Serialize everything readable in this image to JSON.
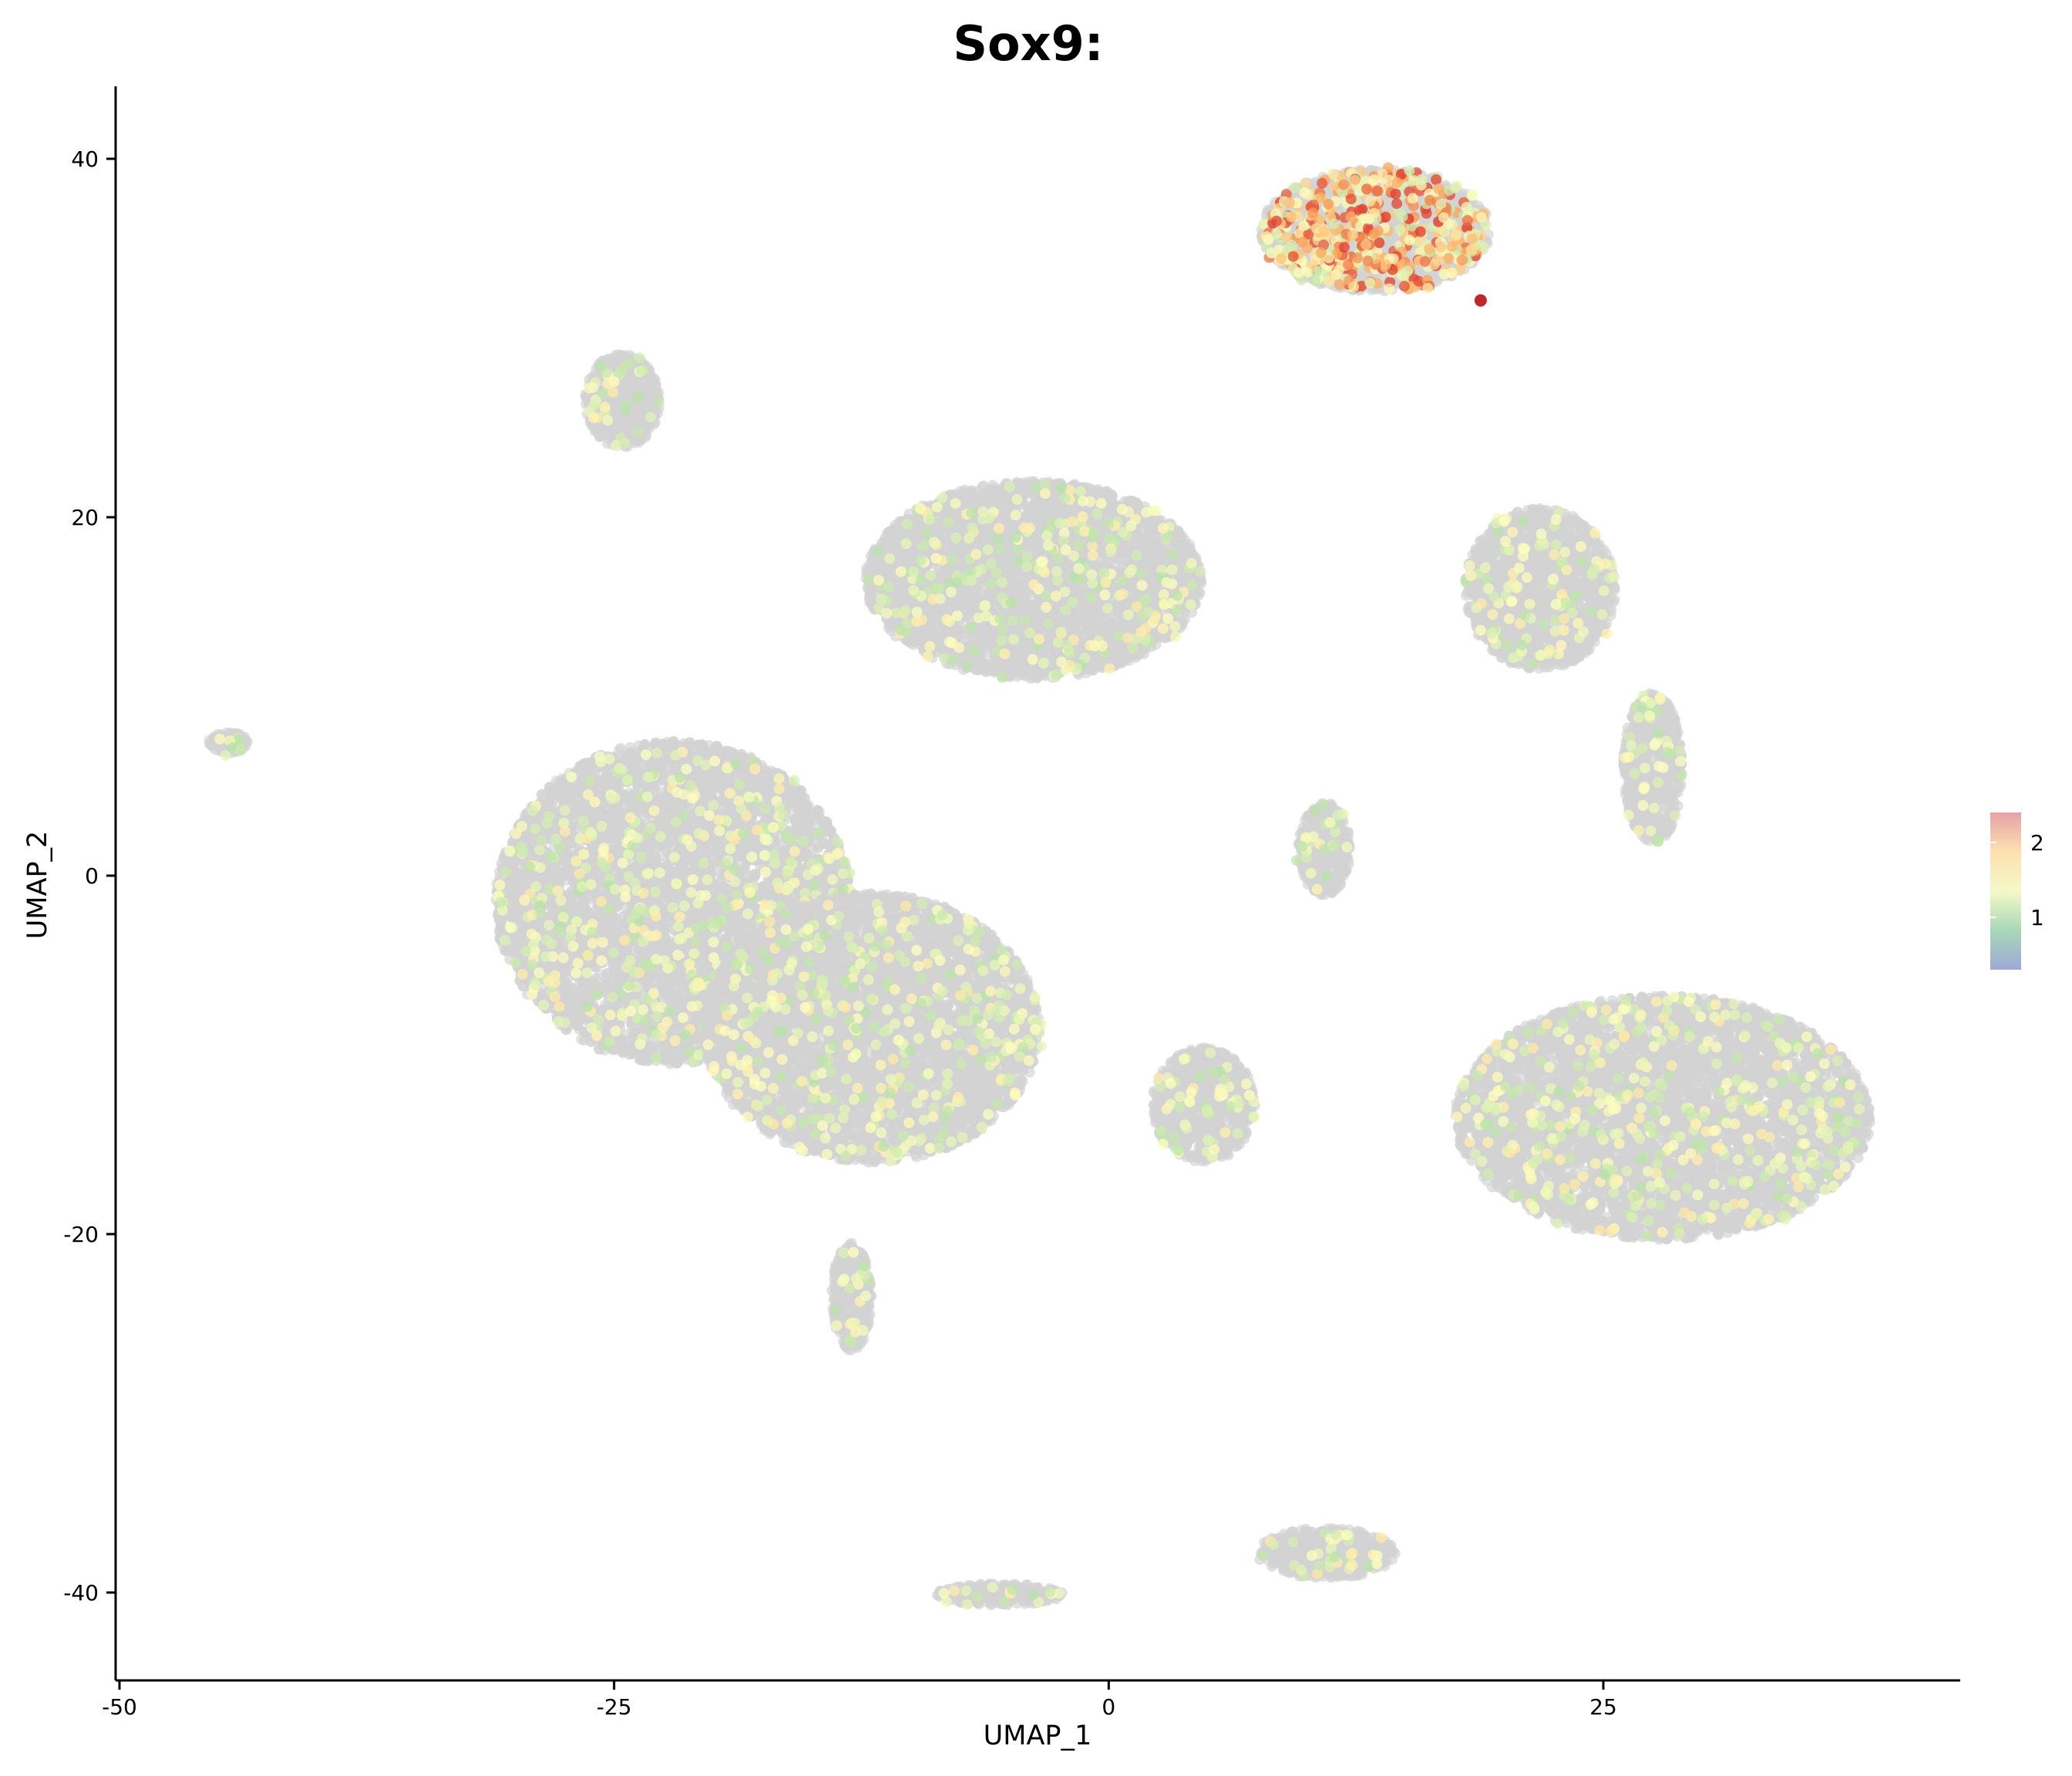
{
  "chart_data": {
    "type": "scatter",
    "title": "Sox9:",
    "xlabel": "UMAP_1",
    "ylabel": "UMAP_2",
    "xlim": [
      -50,
      43
    ],
    "ylim": [
      -45,
      44
    ],
    "x_ticks": [
      -50,
      -25,
      0,
      25
    ],
    "y_ticks": [
      40,
      20,
      0,
      -20,
      -40
    ],
    "grid": false,
    "background_color": "#d3d3d3",
    "color_scale": {
      "name": "Spectral",
      "min": 0.3,
      "max": 2.4,
      "ticks": [
        1,
        2
      ],
      "colors": [
        "#abdda4",
        "#ffffbf",
        "#fdae61",
        "#d7191c"
      ],
      "legend_colors": [
        "#9fa8d6",
        "#a8d8b8",
        "#f4f9c8",
        "#fde0b0",
        "#e6a2a8"
      ],
      "legend_position": "right"
    },
    "clusters": [
      {
        "cx": 13.5,
        "cy": 36.0,
        "rx": 5.8,
        "ry": 3.4,
        "label": "top"
      },
      {
        "cx": -24.6,
        "cy": 26.5,
        "rx": 1.9,
        "ry": 2.6,
        "label": "upper-left-small"
      },
      {
        "cx": -3.8,
        "cy": 16.5,
        "rx": 8.5,
        "ry": 5.5,
        "label": "upper-middle"
      },
      {
        "cx": 21.8,
        "cy": 16.0,
        "rx": 3.8,
        "ry": 4.5,
        "label": "upper-right"
      },
      {
        "cx": -44.5,
        "cy": 7.4,
        "rx": 1.0,
        "ry": 0.6,
        "label": "far-left"
      },
      {
        "cx": -22.0,
        "cy": -1.5,
        "rx": 9.0,
        "ry": 9.0,
        "label": "left-mass"
      },
      {
        "cx": -12.0,
        "cy": -8.5,
        "rx": 8.5,
        "ry": 7.5,
        "label": "center-mass"
      },
      {
        "cx": 10.9,
        "cy": 1.5,
        "rx": 1.3,
        "ry": 2.6,
        "label": "mid-small"
      },
      {
        "cx": 4.8,
        "cy": -12.8,
        "rx": 2.6,
        "ry": 3.2,
        "label": "mid-lower"
      },
      {
        "cx": 28.0,
        "cy": -13.5,
        "rx": 10.5,
        "ry": 6.8,
        "label": "right-mass"
      },
      {
        "cx": 27.5,
        "cy": 6.0,
        "rx": 1.5,
        "ry": 4.2,
        "label": "right-streak"
      },
      {
        "cx": 11.0,
        "cy": -37.8,
        "rx": 3.5,
        "ry": 1.4,
        "label": "bottom-right"
      },
      {
        "cx": -5.5,
        "cy": -40.1,
        "rx": 3.2,
        "ry": 0.6,
        "label": "bottom-left"
      },
      {
        "cx": -13.0,
        "cy": -23.5,
        "rx": 1.0,
        "ry": 3.0,
        "label": "lower-tail"
      }
    ]
  }
}
